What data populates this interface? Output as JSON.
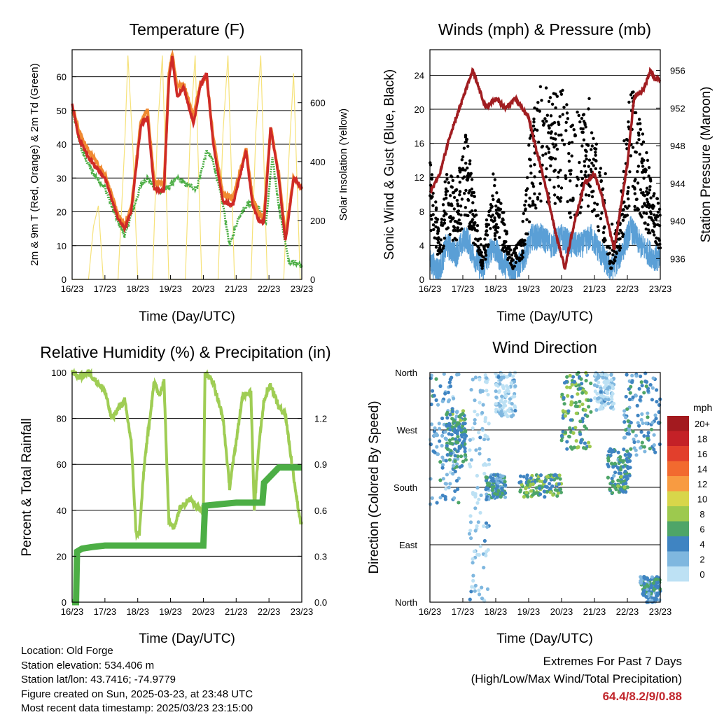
{
  "x_ticks": [
    "16/23",
    "17/23",
    "18/23",
    "19/23",
    "20/23",
    "21/23",
    "22/23",
    "23/23"
  ],
  "xlabel": "Time (Day/UTC)",
  "info": {
    "location": "Location: Old Forge",
    "elevation": "Station elevation: 534.406 m",
    "latlon": "Station lat/lon: 43.7416; -74.9779",
    "created": "Figure created on Sun, 2025-03-23, at 23:48 UTC",
    "recent": "Most recent data timestamp: 2025/03/23 23:15:00"
  },
  "extremes": {
    "title": "Extremes For Past 7 Days",
    "subtitle": "(High/Low/Max Wind/Total Precipitation)",
    "values": "64.4/8.2/9/0.88"
  },
  "colors": {
    "temp2m": "#cf2a27",
    "temp9m": "#f08a32",
    "dewpoint": "#4cae45",
    "solar": "#f6e27a",
    "wind": "#5a9fd6",
    "gust": "#000000",
    "pressure": "#a11d21",
    "rh": "#9fcd54",
    "precip": "#4cae45"
  },
  "chart_data": [
    {
      "id": "temp",
      "type": "line",
      "title": "Temperature (F)",
      "xlabel": "Time (Day/UTC)",
      "ylabel": "2m & 9m T (Red, Orange) & 2m Td (Green)",
      "y2label": "Solar Insolation (Yellow)",
      "x_range": [
        0,
        7
      ],
      "ylim": [
        0,
        68
      ],
      "y_ticks": [
        0,
        10,
        20,
        30,
        40,
        50,
        60
      ],
      "y2lim": [
        0,
        780
      ],
      "y2_ticks": [
        0,
        200,
        400,
        600
      ],
      "series": [
        {
          "key": "temp2m",
          "x": [
            0,
            0.2,
            0.5,
            1,
            1.4,
            1.6,
            1.8,
            2.1,
            2.3,
            2.5,
            2.8,
            2.95,
            3.05,
            3.2,
            3.4,
            3.7,
            3.9,
            4.1,
            4.3,
            4.6,
            4.9,
            5.1,
            5.3,
            5.5,
            5.7,
            5.85,
            6.05,
            6.3,
            6.5,
            6.75,
            7
          ],
          "y": [
            52,
            42,
            36,
            30,
            18,
            15,
            20,
            46,
            48,
            27,
            26,
            59,
            66,
            54,
            57,
            46,
            57,
            61,
            40,
            23,
            22,
            30,
            38,
            22,
            17,
            17,
            45,
            30,
            11,
            30,
            27
          ]
        },
        {
          "key": "temp9m",
          "x": [
            0,
            0.2,
            0.5,
            1,
            1.4,
            1.6,
            1.8,
            2.1,
            2.3,
            2.5,
            2.8,
            2.95,
            3.05,
            3.2,
            3.4,
            3.7,
            3.9,
            4.1,
            4.3,
            4.6,
            4.9,
            5.1,
            5.3,
            5.5,
            5.7,
            5.85,
            6.05,
            6.3,
            6.5,
            6.75,
            7
          ],
          "y": [
            51,
            44,
            38,
            31,
            19,
            16,
            21,
            47,
            50,
            29,
            28,
            61,
            67,
            57,
            58,
            48,
            58,
            60,
            42,
            25,
            24,
            31,
            39,
            24,
            19,
            19,
            45,
            31,
            13,
            30,
            27
          ]
        },
        {
          "key": "dewpoint",
          "x": [
            0,
            0.3,
            0.6,
            1,
            1.4,
            1.6,
            1.8,
            2.1,
            2.3,
            2.6,
            2.9,
            3.2,
            3.5,
            3.8,
            4.1,
            4.3,
            4.6,
            4.8,
            5.1,
            5.4,
            5.7,
            5.9,
            6.1,
            6.3,
            6.6,
            6.85,
            7
          ],
          "y": [
            50,
            38,
            32,
            27,
            17,
            13,
            19,
            28,
            30,
            26,
            27,
            30,
            28,
            27,
            38,
            35,
            22,
            10,
            19,
            23,
            21,
            16,
            36,
            22,
            5,
            5,
            4
          ]
        },
        {
          "key": "solar",
          "x": [
            0,
            0.5,
            0.65,
            0.8,
            0.95,
            1.4,
            1.6,
            1.7,
            1.85,
            2,
            2.45,
            2.6,
            2.75,
            2.95,
            3.45,
            3.6,
            3.75,
            3.95,
            4.45,
            4.6,
            4.75,
            4.95,
            5.45,
            5.6,
            5.75,
            5.95,
            6.45,
            6.6,
            6.75,
            6.95,
            7
          ],
          "y": [
            0,
            0,
            180,
            250,
            0,
            0,
            450,
            760,
            450,
            0,
            0,
            500,
            760,
            0,
            0,
            500,
            760,
            0,
            0,
            500,
            760,
            0,
            0,
            500,
            760,
            0,
            0,
            400,
            700,
            0,
            0
          ]
        }
      ]
    },
    {
      "id": "wind",
      "type": "scatter",
      "title": "Winds (mph) & Pressure (mb)",
      "xlabel": "Time (Day/UTC)",
      "ylabel": "Sonic Wind & Gust (Blue, Black)",
      "y2label": "Station Pressure (Maroon)",
      "x_range": [
        0,
        7
      ],
      "ylim": [
        0,
        27
      ],
      "y_ticks": [
        0,
        4,
        8,
        12,
        16,
        20,
        24
      ],
      "y2lim": [
        933.8,
        958.2
      ],
      "y2_ticks": [
        936,
        940,
        944,
        948,
        952,
        956
      ],
      "pressure": {
        "x": [
          0,
          0.3,
          0.6,
          1,
          1.3,
          1.7,
          2,
          2.3,
          2.6,
          3,
          3.2,
          3.5,
          3.8,
          4.1,
          4.4,
          4.7,
          5,
          5.2,
          5.6,
          6,
          6.2,
          6.5,
          6.7,
          6.85,
          7
        ],
        "y": [
          943,
          945,
          949,
          953,
          956,
          952,
          953,
          952,
          953,
          951,
          948,
          944,
          939,
          935,
          940,
          944,
          945,
          943,
          937,
          946,
          953,
          954,
          956,
          955,
          955
        ]
      },
      "wind_mean": {
        "x": [
          0,
          0.3,
          0.5,
          0.8,
          1.1,
          1.3,
          1.6,
          1.9,
          2.2,
          2.5,
          2.8,
          3.1,
          3.4,
          3.7,
          4.0,
          4.3,
          4.6,
          4.9,
          5.2,
          5.5,
          5.8,
          6.1,
          6.4,
          6.7,
          7
        ],
        "y": [
          2,
          1,
          4,
          3,
          5,
          3,
          1,
          4,
          2,
          1,
          2,
          5,
          5,
          4,
          5,
          4,
          4,
          5,
          3,
          1,
          3,
          6,
          4,
          3,
          2
        ]
      },
      "gust_mean": {
        "x": [
          0,
          0.3,
          0.5,
          0.8,
          1.1,
          1.3,
          1.6,
          1.9,
          2.2,
          2.5,
          2.8,
          3.1,
          3.4,
          3.7,
          4.0,
          4.3,
          4.6,
          4.9,
          5.2,
          5.5,
          5.8,
          6.1,
          6.4,
          6.7,
          7
        ],
        "y": [
          10,
          4,
          9,
          8,
          12,
          8,
          2,
          9,
          6,
          2,
          4,
          14,
          16,
          15,
          16,
          13,
          14,
          15,
          9,
          2,
          6,
          16,
          13,
          9,
          6
        ]
      }
    },
    {
      "id": "rh",
      "type": "line",
      "title": "Relative Humidity (%) & Precipitation (in)",
      "xlabel": "Time (Day/UTC)",
      "ylabel": "Percent & Total Rainfall",
      "x_range": [
        0,
        7
      ],
      "ylim": [
        0,
        100
      ],
      "y_ticks": [
        0,
        20,
        40,
        60,
        80,
        100
      ],
      "y2lim": [
        0,
        1.5
      ],
      "y2_ticks": [
        "0.0",
        "0.3",
        "0.6",
        "0.9",
        "1.2"
      ],
      "series": [
        {
          "key": "rh",
          "x": [
            0,
            0.05,
            0.2,
            0.5,
            1,
            1.2,
            1.6,
            1.8,
            1.95,
            2.05,
            2.2,
            2.5,
            2.65,
            2.8,
            2.95,
            3.1,
            3.3,
            3.6,
            3.9,
            4.0,
            4.05,
            4.3,
            4.6,
            4.8,
            5.0,
            5.2,
            5.45,
            5.55,
            5.7,
            5.85,
            6.05,
            6.3,
            6.5,
            6.7,
            6.9,
            7
          ],
          "y": [
            100,
            100,
            98,
            100,
            92,
            80,
            88,
            70,
            30,
            30,
            60,
            96,
            90,
            96,
            35,
            32,
            42,
            45,
            40,
            40,
            100,
            96,
            80,
            50,
            70,
            90,
            92,
            40,
            70,
            88,
            95,
            85,
            82,
            60,
            40,
            33
          ]
        },
        {
          "key": "precip",
          "x": [
            0,
            0.12,
            0.15,
            0.3,
            0.6,
            1,
            2,
            3,
            3.9,
            4.0,
            4.05,
            4.5,
            5,
            5.5,
            5.8,
            5.85,
            6.3,
            6.7,
            7
          ],
          "y": [
            0,
            0,
            0.33,
            0.35,
            0.36,
            0.37,
            0.37,
            0.37,
            0.37,
            0.37,
            0.63,
            0.64,
            0.65,
            0.65,
            0.65,
            0.78,
            0.88,
            0.88,
            0.88
          ]
        }
      ]
    },
    {
      "id": "direction",
      "type": "scatter",
      "title": "Wind Direction",
      "xlabel": "Time (Day/UTC)",
      "ylabel": "Direction (Colored By Speed)",
      "x_range": [
        0,
        7
      ],
      "ylim": [
        0,
        360
      ],
      "y_tick_labels": [
        "North",
        "East",
        "South",
        "West",
        "North"
      ],
      "y_tick_values": [
        0,
        90,
        180,
        270,
        360
      ],
      "legend": {
        "title": "mph",
        "labels": [
          "20+",
          "18",
          "16",
          "14",
          "12",
          "10",
          "8",
          "6",
          "4",
          "2",
          "0"
        ],
        "colors": [
          "#a31a1f",
          "#c42127",
          "#e23f2c",
          "#f26a2f",
          "#f89b41",
          "#d8d64a",
          "#9dc94e",
          "#4ea568",
          "#3f84c2",
          "#7fb7df",
          "#bde1f4"
        ]
      },
      "clusters": [
        {
          "x": [
            0.0,
            0.9
          ],
          "y": [
            150,
            360
          ],
          "speed": 3
        },
        {
          "x": [
            0.5,
            1.1
          ],
          "y": [
            210,
            300
          ],
          "speed": 5
        },
        {
          "x": [
            1.2,
            1.8
          ],
          "y": [
            0,
            360
          ],
          "speed": 1
        },
        {
          "x": [
            1.7,
            2.3
          ],
          "y": [
            160,
            200
          ],
          "speed": 4
        },
        {
          "x": [
            2.0,
            2.6
          ],
          "y": [
            290,
            360
          ],
          "speed": 1
        },
        {
          "x": [
            2.7,
            4.0
          ],
          "y": [
            165,
            200
          ],
          "speed": 6
        },
        {
          "x": [
            4.0,
            4.9
          ],
          "y": [
            240,
            360
          ],
          "speed": 6
        },
        {
          "x": [
            5.0,
            5.6
          ],
          "y": [
            300,
            360
          ],
          "speed": 1
        },
        {
          "x": [
            5.4,
            6.1
          ],
          "y": [
            170,
            240
          ],
          "speed": 5
        },
        {
          "x": [
            5.9,
            7.0
          ],
          "y": [
            230,
            360
          ],
          "speed": 4
        },
        {
          "x": [
            6.4,
            7.0
          ],
          "y": [
            0,
            40
          ],
          "speed": 4
        }
      ]
    }
  ]
}
